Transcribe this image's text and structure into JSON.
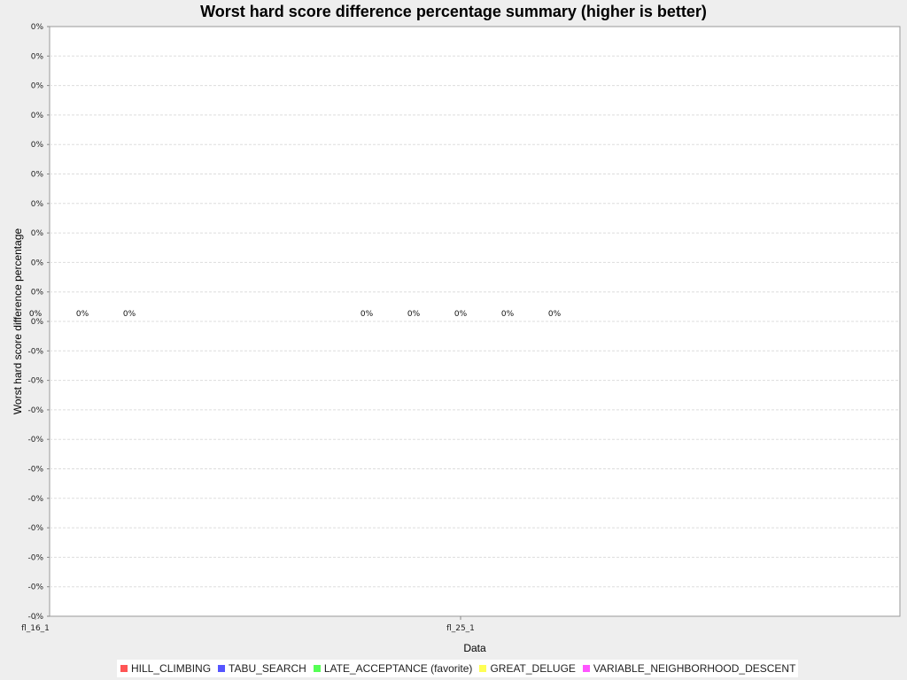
{
  "chart_data": {
    "type": "bar",
    "title": "Worst hard score difference percentage summary (higher is better)",
    "xlabel": "Data",
    "ylabel": "Worst hard score difference percentage",
    "categories": [
      "fl_16_1",
      "fl_25_1"
    ],
    "series": [
      {
        "name": "HILL_CLIMBING",
        "values": [
          0,
          0
        ],
        "labels": [
          "0%",
          "0%"
        ],
        "color": "#ff5555"
      },
      {
        "name": "TABU_SEARCH",
        "values": [
          0,
          0
        ],
        "labels": [
          "0%",
          "0%"
        ],
        "color": "#5555ff"
      },
      {
        "name": "LATE_ACCEPTANCE (favorite)",
        "values": [
          0,
          0
        ],
        "labels": [
          "0%",
          "0%"
        ],
        "color": "#55ff55"
      },
      {
        "name": "GREAT_DELUGE",
        "values": [
          0,
          0
        ],
        "labels": [
          "0%",
          "0%"
        ],
        "color": "#ffff55"
      },
      {
        "name": "VARIABLE_NEIGHBORHOOD_DESCENT",
        "values": [
          0,
          0
        ],
        "labels": [
          "0%",
          "0%"
        ],
        "color": "#ff55ff"
      }
    ],
    "y_tick_labels": [
      "0%",
      "0%",
      "0%",
      "0%",
      "0%",
      "0%",
      "0%",
      "0%",
      "0%",
      "0%",
      "0%",
      "-0%",
      "-0%",
      "-0%",
      "-0%",
      "-0%",
      "-0%",
      "-0%",
      "-0%",
      "-0%",
      "-0%"
    ],
    "ylim": [
      -0.001,
      0.001
    ],
    "grid": true,
    "legend_position": "bottom"
  }
}
